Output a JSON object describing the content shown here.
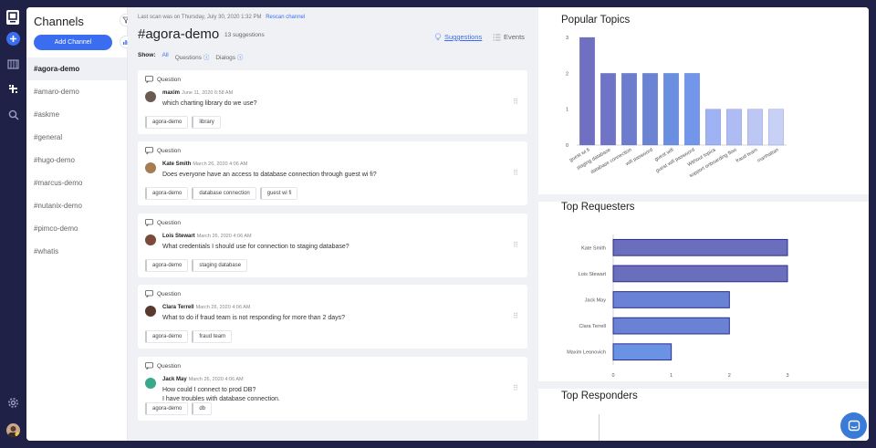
{
  "rail": {
    "icons": [
      "logo-icon",
      "add-icon",
      "library-icon",
      "slack-icon",
      "search-icon",
      "settings-icon",
      "user-avatar"
    ]
  },
  "channels": {
    "heading": "Channels",
    "add_button": "Add Channel",
    "items": [
      {
        "label": "#agora-demo",
        "active": true
      },
      {
        "label": "#amaro-demo",
        "active": false
      },
      {
        "label": "#askme",
        "active": false
      },
      {
        "label": "#general",
        "active": false
      },
      {
        "label": "#hugo-demo",
        "active": false
      },
      {
        "label": "#marcus-demo",
        "active": false
      },
      {
        "label": "#nutanix-demo",
        "active": false
      },
      {
        "label": "#pimco-demo",
        "active": false
      },
      {
        "label": "#whatis",
        "active": false
      }
    ]
  },
  "feed": {
    "scan_text": "Last scan was on Thursday, July 30, 2020 1:32 PM",
    "rescan_link": "Rescan channel",
    "title": "#agora-demo",
    "count": "13 suggestions",
    "suggestions_label": "Suggestions",
    "events_label": "Events",
    "show_label": "Show:",
    "show_all": "All",
    "show_questions": "Questions",
    "show_dialogs": "Dialogs",
    "cards": [
      {
        "type": "Question",
        "author": "maxim",
        "date": "June 11, 2020 6:58 AM",
        "lines": [
          "which charting library do we use?"
        ],
        "tags": [
          "agora-demo",
          "library"
        ],
        "avatar_color": "#6b5a52"
      },
      {
        "type": "Question",
        "author": "Kate Smith",
        "date": "March 26, 2020 4:06 AM",
        "lines": [
          "Does everyone have an access to database connection through guest wi fi?"
        ],
        "tags": [
          "agora-demo",
          "database connection",
          "guest wi fi"
        ],
        "avatar_color": "#a67c52"
      },
      {
        "type": "Question",
        "author": "Lois Stewart",
        "date": "March 26, 2020 4:06 AM",
        "lines": [
          "What credentials I should use for connection to staging database?"
        ],
        "tags": [
          "agora-demo",
          "staging database"
        ],
        "avatar_color": "#7a4b3a"
      },
      {
        "type": "Question",
        "author": "Clara Terrell",
        "date": "March 26, 2020 4:06 AM",
        "lines": [
          "What to do if fraud team is not responding for more than 2 days?"
        ],
        "tags": [
          "agora-demo",
          "fraud team"
        ],
        "avatar_color": "#5a3a30"
      },
      {
        "type": "Question",
        "author": "Jack May",
        "date": "March 26, 2020 4:06 AM",
        "lines": [
          "How could I connect to prod DB?",
          "I have troubles with database connection."
        ],
        "tags": [
          "agora-demo",
          "db"
        ],
        "avatar_color": "#3aa88a"
      }
    ]
  },
  "analytics": {
    "popular_title": "Popular Topics",
    "requesters_title": "Top Requesters",
    "responders_title": "Top Responders"
  },
  "chart_data": [
    {
      "type": "bar",
      "title": "Popular Topics",
      "categories": [
        "guest wi fi",
        "staging database",
        "database connection",
        "wifi password",
        "guest wifi",
        "guest wifi password",
        "Without topics",
        "support onboarding flow",
        "fraud team",
        "manhattan"
      ],
      "values": [
        3,
        2,
        2,
        2,
        2,
        2,
        1,
        1,
        1,
        1
      ],
      "ylim": [
        0,
        3
      ],
      "yticks": [
        0,
        1,
        2,
        3
      ],
      "colors": [
        "#6f70c2",
        "#6f74c6",
        "#6d7ccc",
        "#6a83d3",
        "#6a8ee0",
        "#7196ea",
        "#9fb2f3",
        "#aebcf3",
        "#bcc7f4",
        "#c7d0f5"
      ]
    },
    {
      "type": "bar",
      "orientation": "horizontal",
      "title": "Top Requesters",
      "categories": [
        "Kate Smith",
        "Lois Stewart",
        "Jack May",
        "Clara Terrell",
        "Maxim Leonovich"
      ],
      "values": [
        3,
        3,
        2,
        2,
        1
      ],
      "xlim": [
        0,
        3
      ],
      "xticks": [
        0,
        1,
        2,
        3
      ],
      "colors": [
        "#6a6ebd",
        "#6a6ebd",
        "#6a82d4",
        "#6a82d4",
        "#6a93e6"
      ]
    },
    {
      "type": "bar",
      "title": "Top Responders",
      "categories": [],
      "values": []
    }
  ]
}
